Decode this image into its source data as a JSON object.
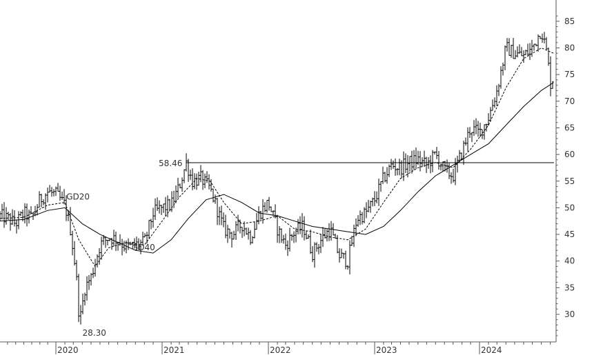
{
  "chart_data": {
    "type": "bar",
    "subtype": "ohlc-price-bars",
    "title": "",
    "xlabel": "",
    "ylabel": "",
    "x_ticks": [
      "2020",
      "2021",
      "2022",
      "2023",
      "2024"
    ],
    "y_ticks": [
      30,
      35,
      40,
      45,
      50,
      55,
      60,
      65,
      70,
      75,
      80,
      85
    ],
    "ylim": [
      25,
      87
    ],
    "grid": false,
    "legend": "none",
    "colors": {
      "bars": "#000000",
      "axis": "#555555",
      "text": "#333333"
    },
    "series": [
      {
        "name": "",
        "kind": "price",
        "points": [
          [
            "2019-06-01",
            48.5
          ],
          [
            "2019-07-01",
            48.0
          ],
          [
            "2019-08-01",
            47.0
          ],
          [
            "2019-09-01",
            49.0
          ],
          [
            "2019-10-01",
            48.0
          ],
          [
            "2019-11-01",
            51.5
          ],
          [
            "2019-12-01",
            53.0
          ],
          [
            "2020-01-01",
            52.5
          ],
          [
            "2020-02-01",
            50.5
          ],
          [
            "2020-02-20",
            46.0
          ],
          [
            "2020-03-10",
            38.0
          ],
          [
            "2020-03-23",
            28.3
          ],
          [
            "2020-04-10",
            35.0
          ],
          [
            "2020-05-01",
            37.0
          ],
          [
            "2020-06-01",
            43.0
          ],
          [
            "2020-07-01",
            44.5
          ],
          [
            "2020-08-01",
            44.0
          ],
          [
            "2020-09-01",
            42.5
          ],
          [
            "2020-10-01",
            43.0
          ],
          [
            "2020-11-01",
            43.5
          ],
          [
            "2020-12-01",
            49.0
          ],
          [
            "2021-01-01",
            50.0
          ],
          [
            "2021-02-01",
            50.5
          ],
          [
            "2021-03-01",
            54.0
          ],
          [
            "2021-03-25",
            58.46
          ],
          [
            "2021-04-15",
            55.0
          ],
          [
            "2021-05-15",
            55.5
          ],
          [
            "2021-06-15",
            53.5
          ],
          [
            "2021-07-01",
            51.0
          ],
          [
            "2021-08-01",
            46.0
          ],
          [
            "2021-09-01",
            45.0
          ],
          [
            "2021-10-01",
            47.0
          ],
          [
            "2021-11-01",
            44.5
          ],
          [
            "2021-12-01",
            49.0
          ],
          [
            "2022-01-01",
            51.0
          ],
          [
            "2022-02-01",
            46.0
          ],
          [
            "2022-03-01",
            43.0
          ],
          [
            "2022-04-01",
            45.5
          ],
          [
            "2022-05-01",
            46.5
          ],
          [
            "2022-06-01",
            41.5
          ],
          [
            "2022-07-01",
            44.0
          ],
          [
            "2022-08-01",
            46.0
          ],
          [
            "2022-09-01",
            41.0
          ],
          [
            "2022-10-01",
            40.0
          ],
          [
            "2022-11-01",
            48.0
          ],
          [
            "2022-12-01",
            49.0
          ],
          [
            "2023-01-01",
            51.5
          ],
          [
            "2023-02-01",
            55.5
          ],
          [
            "2023-03-01",
            58.0
          ],
          [
            "2023-04-01",
            57.5
          ],
          [
            "2023-05-01",
            58.5
          ],
          [
            "2023-06-01",
            59.0
          ],
          [
            "2023-07-01",
            58.0
          ],
          [
            "2023-08-01",
            60.0
          ],
          [
            "2023-09-01",
            57.0
          ],
          [
            "2023-10-01",
            56.0
          ],
          [
            "2023-11-01",
            60.5
          ],
          [
            "2023-12-01",
            65.0
          ],
          [
            "2024-01-01",
            64.0
          ],
          [
            "2024-02-01",
            67.0
          ],
          [
            "2024-03-01",
            72.0
          ],
          [
            "2024-04-01",
            80.0
          ],
          [
            "2024-05-01",
            79.0
          ],
          [
            "2024-06-01",
            78.5
          ],
          [
            "2024-07-01",
            80.0
          ],
          [
            "2024-08-01",
            83.5
          ],
          [
            "2024-08-20",
            79.0
          ],
          [
            "2024-09-05",
            72.0
          ],
          [
            "2024-09-12",
            76.0
          ]
        ]
      },
      {
        "name": "GD20",
        "kind": "moving-average",
        "style": "dashed",
        "points": [
          [
            "2019-06-01",
            48.0
          ],
          [
            "2019-09-01",
            48.2
          ],
          [
            "2019-12-01",
            50.5
          ],
          [
            "2020-02-01",
            51.0
          ],
          [
            "2020-03-20",
            44.0
          ],
          [
            "2020-05-15",
            39.0
          ],
          [
            "2020-07-01",
            42.5
          ],
          [
            "2020-09-01",
            43.5
          ],
          [
            "2020-11-01",
            43.0
          ],
          [
            "2021-01-01",
            47.5
          ],
          [
            "2021-03-01",
            52.0
          ],
          [
            "2021-05-01",
            55.5
          ],
          [
            "2021-06-15",
            55.0
          ],
          [
            "2021-08-01",
            51.0
          ],
          [
            "2021-10-01",
            47.0
          ],
          [
            "2021-12-01",
            47.5
          ],
          [
            "2022-02-01",
            48.5
          ],
          [
            "2022-04-01",
            46.0
          ],
          [
            "2022-06-01",
            45.5
          ],
          [
            "2022-08-01",
            44.5
          ],
          [
            "2022-10-01",
            44.0
          ],
          [
            "2022-12-01",
            46.0
          ],
          [
            "2023-02-01",
            51.0
          ],
          [
            "2023-04-01",
            55.5
          ],
          [
            "2023-06-01",
            57.5
          ],
          [
            "2023-08-01",
            58.5
          ],
          [
            "2023-10-01",
            57.5
          ],
          [
            "2023-12-01",
            61.0
          ],
          [
            "2024-02-01",
            65.5
          ],
          [
            "2024-04-01",
            72.5
          ],
          [
            "2024-06-01",
            78.0
          ],
          [
            "2024-08-01",
            80.0
          ],
          [
            "2024-09-12",
            79.0
          ]
        ]
      },
      {
        "name": "GD40",
        "kind": "moving-average",
        "style": "solid",
        "points": [
          [
            "2019-06-01",
            47.5
          ],
          [
            "2019-09-01",
            47.8
          ],
          [
            "2019-12-01",
            49.5
          ],
          [
            "2020-02-01",
            50.0
          ],
          [
            "2020-04-01",
            47.0
          ],
          [
            "2020-06-01",
            45.0
          ],
          [
            "2020-08-01",
            43.5
          ],
          [
            "2020-10-01",
            42.0
          ],
          [
            "2020-12-01",
            41.5
          ],
          [
            "2021-02-01",
            44.0
          ],
          [
            "2021-04-01",
            48.0
          ],
          [
            "2021-06-01",
            51.5
          ],
          [
            "2021-08-01",
            52.5
          ],
          [
            "2021-10-01",
            51.0
          ],
          [
            "2021-12-01",
            49.0
          ],
          [
            "2022-02-01",
            48.5
          ],
          [
            "2022-04-01",
            47.5
          ],
          [
            "2022-06-01",
            46.5
          ],
          [
            "2022-08-01",
            46.0
          ],
          [
            "2022-10-01",
            45.5
          ],
          [
            "2022-12-01",
            45.0
          ],
          [
            "2023-02-01",
            46.5
          ],
          [
            "2023-04-01",
            49.5
          ],
          [
            "2023-06-01",
            53.0
          ],
          [
            "2023-08-01",
            56.0
          ],
          [
            "2023-10-01",
            58.0
          ],
          [
            "2023-12-01",
            60.0
          ],
          [
            "2024-02-01",
            62.0
          ],
          [
            "2024-04-01",
            65.5
          ],
          [
            "2024-06-01",
            69.0
          ],
          [
            "2024-08-01",
            72.0
          ],
          [
            "2024-09-12",
            73.5
          ]
        ]
      }
    ],
    "reference_line": {
      "value": 58.46,
      "label": "58.46"
    },
    "annotations": [
      {
        "text": "58.46",
        "x": "2021-03-25",
        "y": 58.46
      },
      {
        "text": "28.30",
        "x": "2020-03-23",
        "y": 28.3
      },
      {
        "text": "GD20",
        "x": "2020-03-01",
        "y": 51.0
      },
      {
        "text": "GD40",
        "x": "2021-01-15",
        "y": 42.0
      }
    ]
  }
}
